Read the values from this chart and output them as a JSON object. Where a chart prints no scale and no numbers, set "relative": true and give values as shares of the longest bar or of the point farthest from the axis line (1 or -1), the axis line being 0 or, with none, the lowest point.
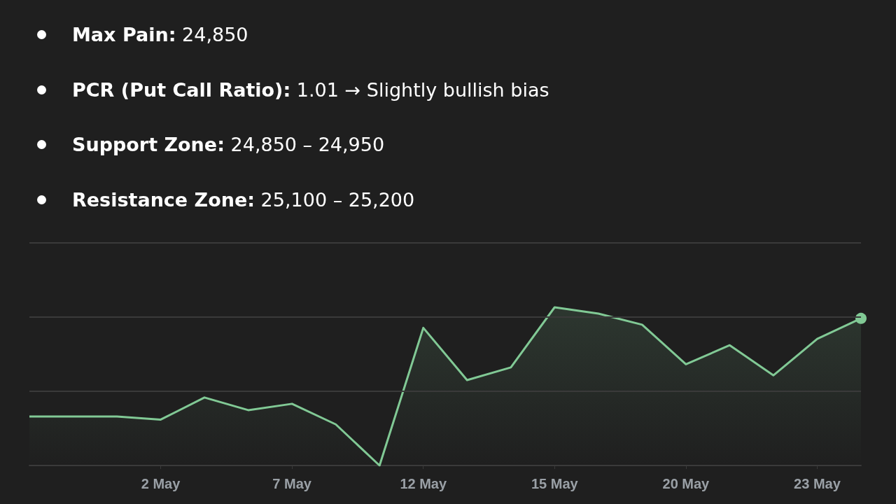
{
  "chart_data": {
    "type": "area",
    "annotations": [
      "Max Pain: 24,850",
      "PCR (Put Call Ratio): 1.01 → Slightly bullish bias",
      "Support Zone: 24,850 – 24,950",
      "Resistance Zone: 25,100 – 25,200"
    ],
    "categories": [
      null,
      null,
      null,
      "2 May",
      null,
      null,
      "7 May",
      null,
      null,
      "12 May",
      null,
      null,
      "15 May",
      null,
      null,
      "20 May",
      null,
      null,
      "23 May",
      null
    ],
    "relative": true,
    "ref_lines": [
      {
        "axis": "y",
        "value": 0.47,
        "color": "#3a3a3a"
      },
      {
        "axis": "y",
        "value": 0.94,
        "color": "#3a3a3a"
      },
      {
        "axis": "y",
        "value": 1.41,
        "color": "#3a3a3a"
      }
    ],
    "series": [
      {
        "color": "#81c995",
        "values": [
          0.31,
          0.31,
          0.31,
          0.29,
          0.43,
          0.35,
          0.39,
          0.26,
          0,
          0.87,
          0.54,
          0.62,
          1,
          0.96,
          0.89,
          0.64,
          0.76,
          0.57,
          0.8,
          0.93
        ]
      }
    ]
  }
}
